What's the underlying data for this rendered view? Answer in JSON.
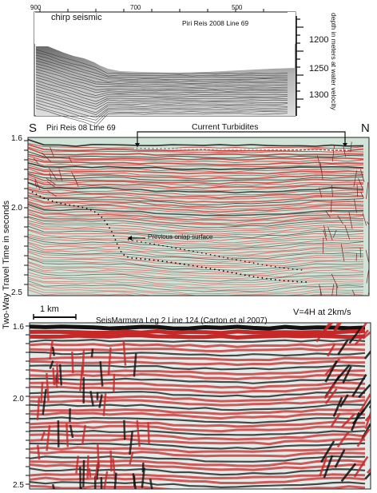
{
  "chirp_panel": {
    "label": "chirp seismic",
    "title": "Piri Reis 2008 Line 69",
    "top_ticks": [
      "900",
      "700",
      "500"
    ],
    "depth_ticks": [
      "1200",
      "1250",
      "1300"
    ],
    "depth_axis_label": "depth in meters at water velocity"
  },
  "piri_panel": {
    "left_end": "S",
    "right_end": "N",
    "title": "Piri Reis 08 Line 69",
    "bracket_label": "Current  Turbidites",
    "onlap_label": "Previous onlap surface",
    "time_ticks": [
      "1.6",
      "2.0",
      "2.5"
    ]
  },
  "seismarmara_panel": {
    "scale_label": "1 km",
    "exaggeration": "V=4H at 2km/s",
    "title": "SeisMarmara Leg 2 Line 124 (Carton et al 2007)",
    "time_ticks": [
      "1.6",
      "2.0",
      "2.5"
    ]
  },
  "shared_axis_label": "Two-Way Travel Time in seconds",
  "colors": {
    "reflector_red": "#c62828",
    "background_mint": "#cfe3d6",
    "trace_black": "#111111"
  }
}
